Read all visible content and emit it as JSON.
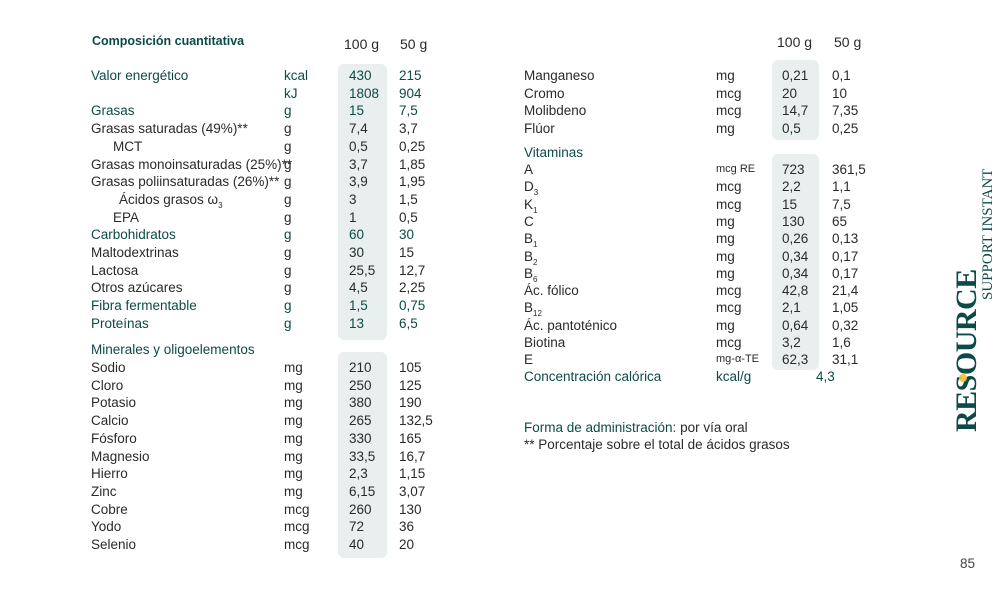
{
  "title": "Composición cuantitativa",
  "col_100": "100 g",
  "col_50": "50 g",
  "left_rows": [
    {
      "name": "Valor energético",
      "unit": "kcal",
      "v100": "430",
      "v50": "215",
      "accent": true
    },
    {
      "name": "",
      "unit": "kJ",
      "v100": "1808",
      "v50": "904",
      "accent": true
    },
    {
      "name": "Grasas",
      "unit": "g",
      "v100": "15",
      "v50": "7,5",
      "accent": true
    },
    {
      "name": "Grasas saturadas (49%)**",
      "unit": "g",
      "v100": "7,4",
      "v50": "3,7"
    },
    {
      "name": "MCT",
      "unit": "g",
      "v100": "0,5",
      "v50": "0,25",
      "indent": 1
    },
    {
      "name": "Grasas monoinsaturadas (25%)**",
      "unit": "g",
      "v100": "3,7",
      "v50": "1,85"
    },
    {
      "name": "Grasas poliinsaturadas (26%)**",
      "unit": "g",
      "v100": "3,9",
      "v50": "1,95"
    },
    {
      "name": "Ácidos grasos ω",
      "sub": "3",
      "unit": "g",
      "v100": "3",
      "v50": "1,5",
      "indent": 2
    },
    {
      "name": "EPA",
      "unit": "g",
      "v100": "1",
      "v50": "0,5",
      "indent": 1
    },
    {
      "name": "Carbohidratos",
      "unit": "g",
      "v100": "60",
      "v50": "30",
      "accent": true
    },
    {
      "name": "Maltodextrinas",
      "unit": "g",
      "v100": "30",
      "v50": "15"
    },
    {
      "name": "Lactosa",
      "unit": "g",
      "v100": "25,5",
      "v50": "12,7"
    },
    {
      "name": "Otros azúcares",
      "unit": "g",
      "v100": "4,5",
      "v50": "2,25"
    },
    {
      "name": "Fibra fermentable",
      "unit": "g",
      "v100": "1,5",
      "v50": "0,75",
      "accent": true
    },
    {
      "name": "Proteínas",
      "unit": "g",
      "v100": "13",
      "v50": "6,5",
      "accent": true
    }
  ],
  "minerals_title": "Minerales y oligoelementos",
  "minerals_rows": [
    {
      "name": "Sodio",
      "unit": "mg",
      "v100": "210",
      "v50": "105"
    },
    {
      "name": "Cloro",
      "unit": "mg",
      "v100": "250",
      "v50": "125"
    },
    {
      "name": "Potasio",
      "unit": "mg",
      "v100": "380",
      "v50": "190"
    },
    {
      "name": "Calcio",
      "unit": "mg",
      "v100": "265",
      "v50": "132,5"
    },
    {
      "name": "Fósforo",
      "unit": "mg",
      "v100": "330",
      "v50": "165"
    },
    {
      "name": "Magnesio",
      "unit": "mg",
      "v100": "33,5",
      "v50": "16,7"
    },
    {
      "name": "Hierro",
      "unit": "mg",
      "v100": "2,3",
      "v50": "1,15"
    },
    {
      "name": "Zinc",
      "unit": "mg",
      "v100": "6,15",
      "v50": "3,07"
    },
    {
      "name": "Cobre",
      "unit": "mcg",
      "v100": "260",
      "v50": "130"
    },
    {
      "name": "Yodo",
      "unit": "mcg",
      "v100": "72",
      "v50": "36"
    },
    {
      "name": "Selenio",
      "unit": "mcg",
      "v100": "40",
      "v50": "20"
    }
  ],
  "right_rows": [
    {
      "name": "Manganeso",
      "unit": "mg",
      "v100": "0,21",
      "v50": "0,1"
    },
    {
      "name": "Cromo",
      "unit": "mcg",
      "v100": "20",
      "v50": "10"
    },
    {
      "name": "Molibdeno",
      "unit": "mcg",
      "v100": "14,7",
      "v50": "7,35"
    },
    {
      "name": "Flúor",
      "unit": "mg",
      "v100": "0,5",
      "v50": "0,25"
    }
  ],
  "vitamins_title": "Vitaminas",
  "vitamin_rows": [
    {
      "name": "A",
      "unit": "mcg RE",
      "v100": "723",
      "v50": "361,5",
      "small_unit": true
    },
    {
      "name": "D",
      "sub": "3",
      "unit": "mcg",
      "v100": "2,2",
      "v50": "1,1"
    },
    {
      "name": "K",
      "sub": "1",
      "unit": "mcg",
      "v100": "15",
      "v50": "7,5"
    },
    {
      "name": "C",
      "unit": "mg",
      "v100": "130",
      "v50": "65"
    },
    {
      "name": "B",
      "sub": "1",
      "unit": "mg",
      "v100": "0,26",
      "v50": "0,13"
    },
    {
      "name": "B",
      "sub": "2",
      "unit": "mg",
      "v100": "0,34",
      "v50": "0,17"
    },
    {
      "name": "B",
      "sub": "6",
      "unit": "mg",
      "v100": "0,34",
      "v50": "0,17"
    },
    {
      "name": "Ác. fólico",
      "unit": "mcg",
      "v100": "42,8",
      "v50": "21,4"
    },
    {
      "name": "B",
      "sub": "12",
      "unit": "mcg",
      "v100": "2,1",
      "v50": "1,05"
    },
    {
      "name": "Ác. pantoténico",
      "unit": "mg",
      "v100": "0,64",
      "v50": "0,32"
    },
    {
      "name": "Biotina",
      "unit": "mcg",
      "v100": "3,2",
      "v50": "1,6"
    },
    {
      "name": "E",
      "unit": "mg-α-TE",
      "v100": "62,3",
      "v50": "31,1",
      "small_unit": true
    }
  ],
  "caloric": {
    "name": "Concentración calórica",
    "unit": "kcal/g",
    "value": "4,3"
  },
  "admin_label": "Forma de administración:",
  "admin_value": " por vía oral",
  "footnote": "** Porcentaje sobre el total de ácidos grasos",
  "brand_name": "RESOURCE",
  "brand_product": "SUPPORT INSTANT",
  "page_number": "85",
  "colors": {
    "accent": "#0d4a47",
    "shade": "#e8efee",
    "logo_o": "#f2c230"
  }
}
